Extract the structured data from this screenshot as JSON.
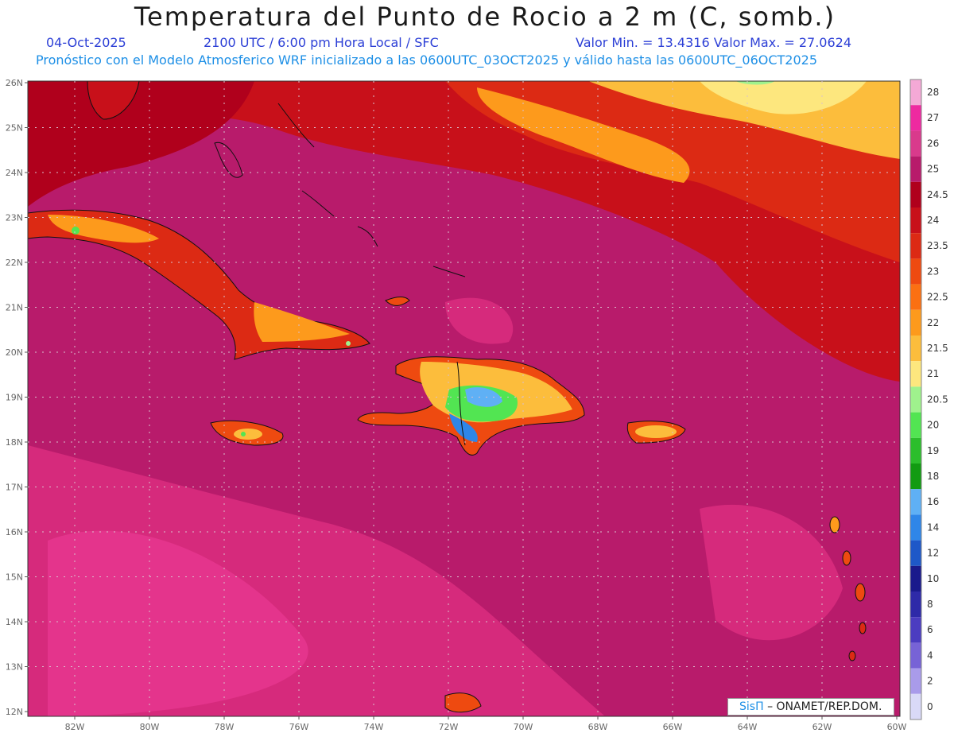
{
  "header": {
    "title": "Temperatura del Punto de Rocio a 2 m (C, somb.)",
    "date": "04-Oct-2025",
    "time": "2100 UTC / 6:00 pm Hora Local / SFC",
    "min_max": "Valor Min. = 13.4316  Valor Max. = 27.0624",
    "model_line": "Pronóstico con el Modelo Atmosferico WRF inicializado a las 0600UTC_03OCT2025 y válido hasta las  0600UTC_06OCT2025"
  },
  "axes": {
    "lat_labels": [
      "26N",
      "25N",
      "24N",
      "23N",
      "22N",
      "21N",
      "20N",
      "19N",
      "18N",
      "17N",
      "16N",
      "15N",
      "14N",
      "13N",
      "12N"
    ],
    "lon_labels": [
      "82W",
      "80W",
      "78W",
      "76W",
      "74W",
      "72W",
      "70W",
      "68W",
      "66W",
      "64W",
      "62W",
      "60W"
    ]
  },
  "colorbar": {
    "labels": [
      "28",
      "27",
      "26",
      "25",
      "24.5",
      "24",
      "23.5",
      "23",
      "22.5",
      "22",
      "21.5",
      "21",
      "20.5",
      "20",
      "19",
      "18",
      "16",
      "14",
      "12",
      "10",
      "8",
      "6",
      "4",
      "2",
      "0"
    ],
    "colors": [
      "#f4a9d6",
      "#ee2aa0",
      "#d93a8c",
      "#b81b6b",
      "#b0001c",
      "#c8101a",
      "#dc2a14",
      "#ee4a10",
      "#fb7012",
      "#fd9a1c",
      "#fcbd3c",
      "#fde77e",
      "#9ff28d",
      "#52e552",
      "#2cbe2c",
      "#129b12",
      "#5fb0f5",
      "#2f86e8",
      "#1e58c8",
      "#1a1a8c",
      "#2e2aa8",
      "#4b3cc0",
      "#7763d6",
      "#a99bea",
      "#d9d9f7"
    ]
  },
  "map": {
    "ocean_color": "#b81b6b",
    "warm_patch_color": "#d62a7c",
    "dry_north_colors": [
      "#fcbd3c",
      "#fde77e",
      "#fd9a1c"
    ]
  },
  "credit": {
    "brand": "SisΠ",
    "text": "– ONAMET/REP.DOM."
  }
}
